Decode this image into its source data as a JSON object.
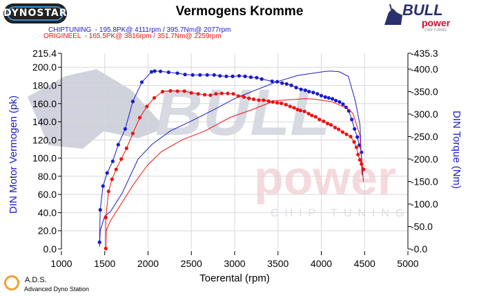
{
  "header": {
    "title": "Vermogens Kromme",
    "left_logo": "DYNOSTAR",
    "right_logo": {
      "line1": "BULL",
      "line2": "power",
      "line3": "CHIP TUNING"
    },
    "legend": [
      {
        "text": "CHIPTUNING  - 195.8PK@ 4111rpm / 395.7Nm@ 2077rpm",
        "color": "#1a1acc"
      },
      {
        "text": "ORIGINEEL  - 165.5PK@ 3816rpm / 351.7Nm@ 2259rpm",
        "color": "#ee1111"
      }
    ]
  },
  "watermark": {
    "line1": "BULL",
    "line2": "power",
    "line3": "CHIP TUNING"
  },
  "footer": {
    "brand": "A.D.S.",
    "subtitle": "Advanced Dyno Station"
  },
  "chart_data": {
    "type": "line",
    "title": "Vermogens Kromme",
    "xlabel": "Toerental (rpm)",
    "ylabel_left": "DIN Motor Vermogen (pk)",
    "ylabel_right": "DIN Torque (Nm)",
    "xlim": [
      1000,
      5000
    ],
    "ylim_left": [
      0,
      215.4
    ],
    "ylim_right": [
      0,
      435.3
    ],
    "x_ticks": [
      "1000",
      "1500",
      "2000",
      "2500",
      "3000",
      "3500",
      "4000",
      "4500",
      "5000"
    ],
    "y_left_ticks": [
      "0.0",
      "20.0",
      "40.0",
      "60.0",
      "80.0",
      "100.0",
      "120.0",
      "140.0",
      "160.0",
      "180.0",
      "200.0",
      "215.4"
    ],
    "y_right_ticks": [
      "0.0",
      "50.0",
      "100.0",
      "150.0",
      "200.0",
      "250.0",
      "300.0",
      "350.0",
      "400.0",
      "435.3"
    ],
    "grid": true,
    "colors": {
      "chiptuning": "#1a1acc",
      "origineel": "#ee1111",
      "grid": "#d8d8d8"
    },
    "series": [
      {
        "name": "CHIPTUNING",
        "quantity": "power",
        "axis": "left",
        "markers": false,
        "color": "#1a1acc",
        "x": [
          1440,
          1448,
          1499,
          1565,
          1699,
          1885,
          2045,
          2259,
          2525,
          2792,
          3032,
          3272,
          3485,
          3726,
          4046,
          4111,
          4206,
          4312,
          4392,
          4446,
          4472
        ],
        "y": [
          2.5,
          20,
          36,
          41,
          61,
          99,
          115,
          130,
          142,
          155,
          167,
          176,
          184,
          191,
          195.4,
          195.8,
          195,
          190,
          163,
          137,
          81
        ]
      },
      {
        "name": "CHIPTUNING",
        "quantity": "torque",
        "axis": "right",
        "markers": true,
        "color": "#1a1acc",
        "x": [
          1440,
          1448,
          1480,
          1528,
          1592,
          1656,
          1736,
          1824,
          1928,
          2040,
          2077,
          2144,
          2237,
          2339,
          2427,
          2515,
          2600,
          2683,
          2763,
          2830,
          2904,
          2976,
          3051,
          3120,
          3187,
          3254,
          3312,
          3432,
          3491,
          3547,
          3600,
          3654,
          3710,
          3766,
          3816,
          3859,
          3907,
          3955,
          4000,
          4046,
          4086,
          4128,
          4168,
          4211,
          4251,
          4286,
          4318,
          4352,
          4384,
          4416,
          4440,
          4464
        ],
        "y": [
          15,
          87,
          140,
          169,
          195,
          232,
          267,
          328,
          371,
          394,
          395.7,
          395,
          393,
          391,
          388,
          387,
          387,
          387,
          387,
          385,
          384,
          384,
          385,
          384,
          382,
          381,
          378,
          373,
          372,
          369,
          367,
          364,
          359,
          355,
          353,
          350,
          348,
          345,
          341,
          338,
          336,
          334,
          330,
          327,
          322,
          315,
          307,
          288,
          267,
          249,
          231,
          215
        ]
      },
      {
        "name": "ORIGINEEL",
        "quantity": "power",
        "axis": "left",
        "markers": false,
        "color": "#ee1111",
        "x": [
          1512,
          1517,
          1565,
          1699,
          1832,
          1992,
          2152,
          2392,
          2659,
          2952,
          3192,
          3459,
          3816,
          3912,
          4126,
          4312,
          4366,
          4446,
          4486
        ],
        "y": [
          0.5,
          20,
          31,
          51,
          71,
          92,
          107,
          120,
          130,
          145,
          153,
          163,
          165.5,
          165,
          162,
          154,
          149,
          125,
          74
        ]
      },
      {
        "name": "ORIGINEEL",
        "quantity": "torque",
        "axis": "right",
        "markers": true,
        "color": "#ee1111",
        "x": [
          1512,
          1512,
          1544,
          1584,
          1632,
          1691,
          1752,
          1824,
          1904,
          1987,
          2072,
          2168,
          2259,
          2339,
          2419,
          2499,
          2579,
          2654,
          2720,
          2784,
          2851,
          2920,
          2984,
          3043,
          3107,
          3166,
          3219,
          3278,
          3334,
          3392,
          3440,
          3491,
          3539,
          3592,
          3640,
          3686,
          3726,
          3760,
          3806,
          3854,
          3891,
          3934,
          3979,
          4027,
          4072,
          4112,
          4160,
          4200,
          4246,
          4291,
          4339,
          4379,
          4406,
          4424,
          4446,
          4464,
          4488
        ],
        "y": [
          1,
          70,
          128,
          155,
          177,
          200,
          224,
          257,
          292,
          317,
          336,
          350,
          351.7,
          351,
          351,
          347,
          345,
          343,
          342,
          345,
          346,
          346,
          345,
          340,
          338,
          335,
          333,
          331,
          331,
          329,
          327,
          325,
          324,
          321,
          317,
          314,
          310,
          308,
          306,
          301,
          297,
          294,
          288,
          284,
          279,
          276,
          270,
          266,
          260,
          255,
          250,
          238,
          226,
          210,
          198,
          189,
          177
        ]
      }
    ]
  }
}
